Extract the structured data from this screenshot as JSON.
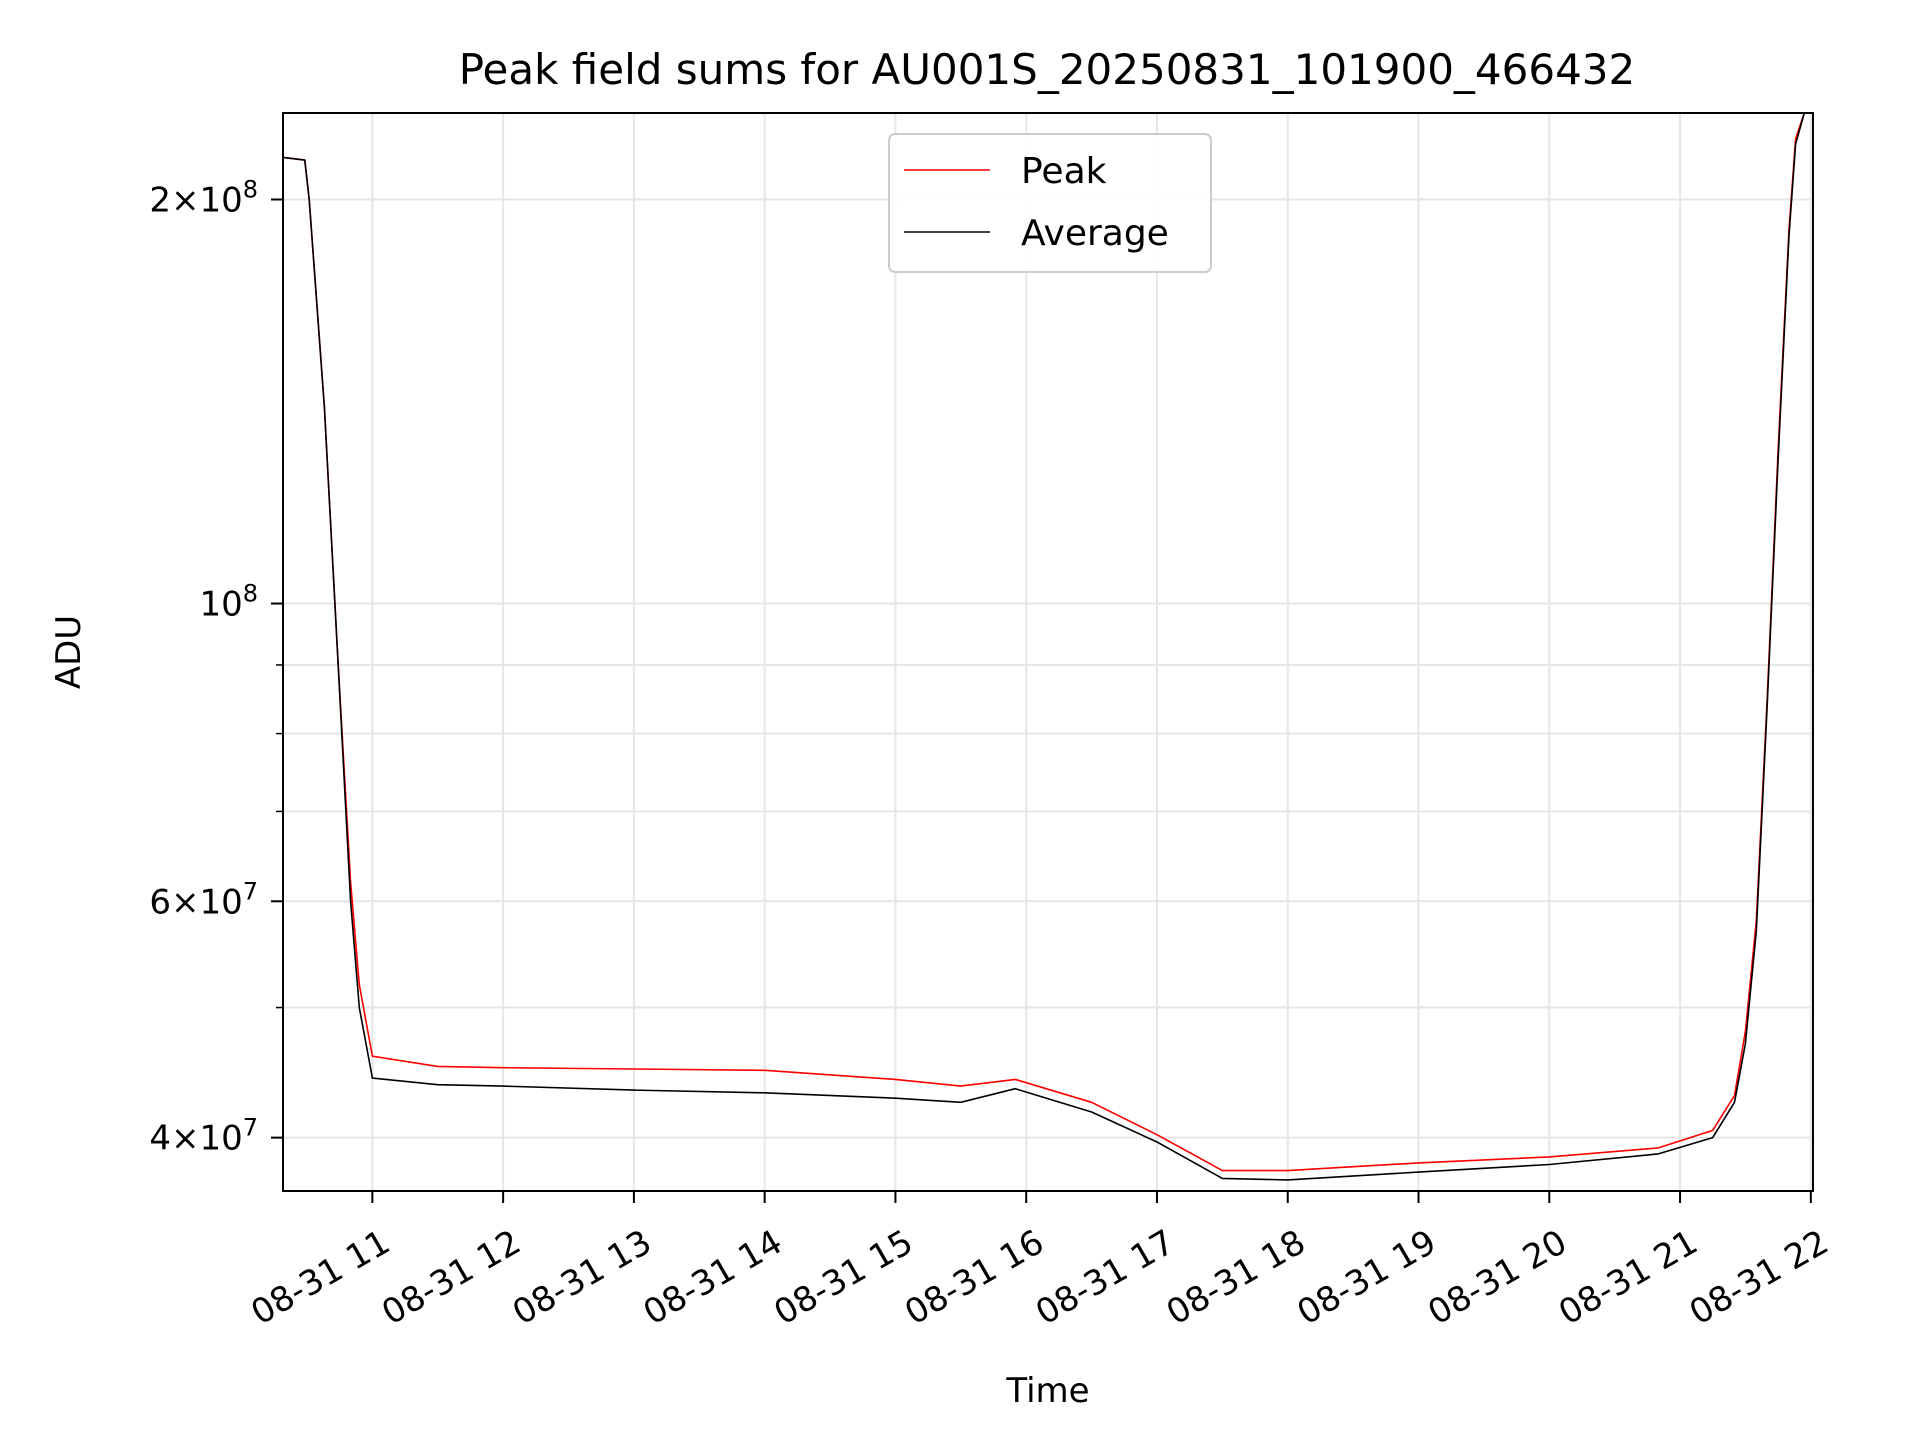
{
  "chart_data": {
    "type": "line",
    "title": "Peak field sums for AU001S_20250831_101900_466432",
    "xlabel": "Time",
    "ylabel": "ADU",
    "yscale": "log",
    "grid": true,
    "legend_position": "top-center",
    "xlim": [
      "2025-08-31 10:19",
      "2025-08-31 22:01"
    ],
    "ylim": [
      36500000,
      232000000
    ],
    "x_ticks": [
      "08-31 11",
      "08-31 12",
      "08-31 13",
      "08-31 14",
      "08-31 15",
      "08-31 16",
      "08-31 17",
      "08-31 18",
      "08-31 19",
      "08-31 20",
      "08-31 21",
      "08-31 22"
    ],
    "y_tick_labels": [
      {
        "value": 200000000,
        "mantissa": "2",
        "times": "×",
        "base": "10",
        "exp": "8"
      },
      {
        "value": 100000000,
        "mantissa": "",
        "times": "",
        "base": "10",
        "exp": "8"
      },
      {
        "value": 60000000,
        "mantissa": "6",
        "times": "×",
        "base": "10",
        "exp": "7"
      },
      {
        "value": 40000000,
        "mantissa": "4",
        "times": "×",
        "base": "10",
        "exp": "7"
      }
    ],
    "y_minor_ticks": [
      50000000,
      70000000,
      80000000,
      90000000
    ],
    "series": [
      {
        "name": "Peak",
        "color": "#ff0000",
        "x": [
          "2025-08-31 10:19",
          "2025-08-31 10:29",
          "2025-08-31 10:31",
          "2025-08-31 10:38",
          "2025-08-31 10:44",
          "2025-08-31 10:50",
          "2025-08-31 10:54",
          "2025-08-31 11:00",
          "2025-08-31 11:30",
          "2025-08-31 12:00",
          "2025-08-31 13:00",
          "2025-08-31 14:00",
          "2025-08-31 15:00",
          "2025-08-31 15:30",
          "2025-08-31 15:55",
          "2025-08-31 16:30",
          "2025-08-31 17:00",
          "2025-08-31 17:30",
          "2025-08-31 18:00",
          "2025-08-31 19:00",
          "2025-08-31 20:00",
          "2025-08-31 20:50",
          "2025-08-31 21:15",
          "2025-08-31 21:25",
          "2025-08-31 21:30",
          "2025-08-31 21:35",
          "2025-08-31 21:40",
          "2025-08-31 21:45",
          "2025-08-31 21:50",
          "2025-08-31 21:53",
          "2025-08-31 21:57",
          "2025-08-31 22:01"
        ],
        "values": [
          215000000,
          214000000,
          200000000,
          140000000,
          92000000,
          62000000,
          52000000,
          46000000,
          45200000,
          45100000,
          45000000,
          44900000,
          44200000,
          43700000,
          44200000,
          42500000,
          40200000,
          37800000,
          37800000,
          38300000,
          38700000,
          39300000,
          40500000,
          43000000,
          48000000,
          58000000,
          85000000,
          130000000,
          190000000,
          222000000,
          232000000,
          232000000
        ]
      },
      {
        "name": "Average",
        "color": "#000000",
        "x": [
          "2025-08-31 10:19",
          "2025-08-31 10:29",
          "2025-08-31 10:31",
          "2025-08-31 10:38",
          "2025-08-31 10:44",
          "2025-08-31 10:50",
          "2025-08-31 10:54",
          "2025-08-31 11:00",
          "2025-08-31 11:30",
          "2025-08-31 12:00",
          "2025-08-31 13:00",
          "2025-08-31 14:00",
          "2025-08-31 15:00",
          "2025-08-31 15:30",
          "2025-08-31 15:55",
          "2025-08-31 16:30",
          "2025-08-31 17:00",
          "2025-08-31 17:30",
          "2025-08-31 18:00",
          "2025-08-31 19:00",
          "2025-08-31 20:00",
          "2025-08-31 20:50",
          "2025-08-31 21:15",
          "2025-08-31 21:25",
          "2025-08-31 21:30",
          "2025-08-31 21:35",
          "2025-08-31 21:40",
          "2025-08-31 21:45",
          "2025-08-31 21:50",
          "2025-08-31 21:53",
          "2025-08-31 21:57",
          "2025-08-31 22:01"
        ],
        "values": [
          215000000,
          214000000,
          200000000,
          140000000,
          92000000,
          60000000,
          50000000,
          44300000,
          43800000,
          43700000,
          43400000,
          43200000,
          42800000,
          42500000,
          43500000,
          41800000,
          39700000,
          37300000,
          37200000,
          37700000,
          38200000,
          38900000,
          40000000,
          42500000,
          47000000,
          57000000,
          84000000,
          128000000,
          188000000,
          220000000,
          232000000,
          232000000
        ]
      }
    ]
  }
}
